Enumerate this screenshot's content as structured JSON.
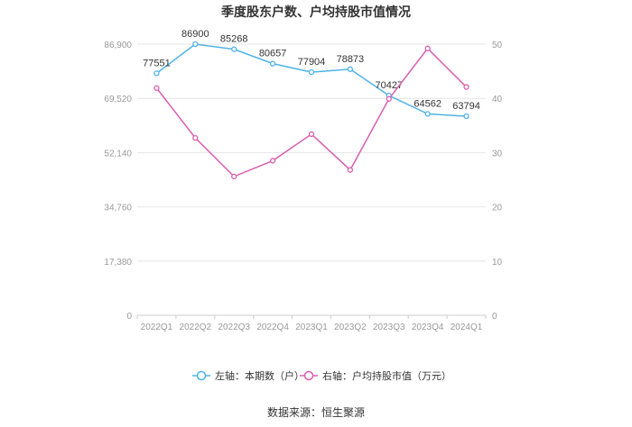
{
  "chart_data": {
    "type": "line",
    "title": "季度股东户数、户均持股市值情况",
    "categories": [
      "2022Q1",
      "2022Q2",
      "2022Q3",
      "2022Q4",
      "2023Q1",
      "2023Q2",
      "2023Q3",
      "2023Q4",
      "2024Q1"
    ],
    "series": [
      {
        "name": "左轴：本期数（户）",
        "axis": "left",
        "color": "#4fb3e8",
        "values": [
          77551,
          86900,
          85268,
          80657,
          77904,
          78873,
          70427,
          64562,
          63794
        ],
        "labels": [
          "77551",
          "86900",
          "85268",
          "80657",
          "77904",
          "78873",
          "70427",
          "64562",
          "63794"
        ]
      },
      {
        "name": "右轴：户均持股市值（万元）",
        "axis": "right",
        "color": "#d95fae",
        "values": [
          41.9,
          32.7,
          25.6,
          28.5,
          33.4,
          26.8,
          39.9,
          49.2,
          42.1
        ]
      }
    ],
    "y_left": {
      "ylim": [
        0,
        86900
      ],
      "ticks": [
        "0",
        "17,380",
        "34,760",
        "52,140",
        "69,520",
        "86,900"
      ]
    },
    "y_right": {
      "ylim": [
        0,
        50
      ],
      "ticks": [
        "0",
        "10",
        "20",
        "30",
        "40",
        "50"
      ]
    },
    "grid": true,
    "legend_position": "bottom"
  },
  "source": "数据来源：恒生聚源"
}
